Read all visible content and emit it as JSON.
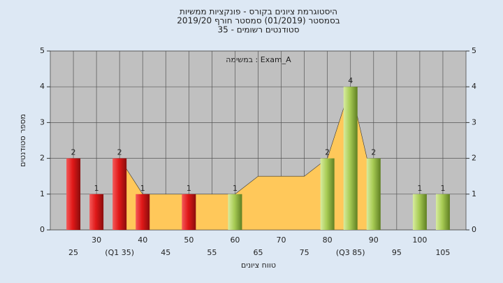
{
  "chart_data": {
    "type": "bar",
    "title": [
      "היסטוגרמת ציונים בקורס - פונקציות ממשיות",
      "בסמסטר  (01/2019)  סמסטר חורף 2019/20",
      "סטודנטים רשומים - 35"
    ],
    "annotation": "Exam_A : במשימה",
    "x_label": "טווח ציונים",
    "y_label": "מספר סטודנטים",
    "categories": [
      "25",
      "30",
      "(Q1 35)",
      "40",
      "45",
      "50",
      "55",
      "60",
      "65",
      "70",
      "75",
      "80",
      "(Q3 85)",
      "90",
      "95",
      "100",
      "105"
    ],
    "values": [
      2,
      1,
      2,
      1,
      0,
      1,
      0,
      1,
      0,
      0,
      0,
      2,
      4,
      2,
      0,
      1,
      1
    ],
    "colors": [
      "red",
      "red",
      "red",
      "red",
      "red",
      "red",
      "red",
      "green",
      "green",
      "green",
      "green",
      "green",
      "green",
      "green",
      "green",
      "green",
      "green"
    ],
    "area": {
      "color": "#ffc85a",
      "values": [
        null,
        null,
        2,
        1,
        1,
        1,
        1,
        1,
        1.5,
        1.5,
        1.5,
        2,
        4,
        1.2,
        null,
        null,
        null
      ]
    },
    "ylim": [
      0,
      5
    ],
    "yticks": [
      0,
      1,
      2,
      3,
      4,
      5
    ],
    "grid": true
  }
}
